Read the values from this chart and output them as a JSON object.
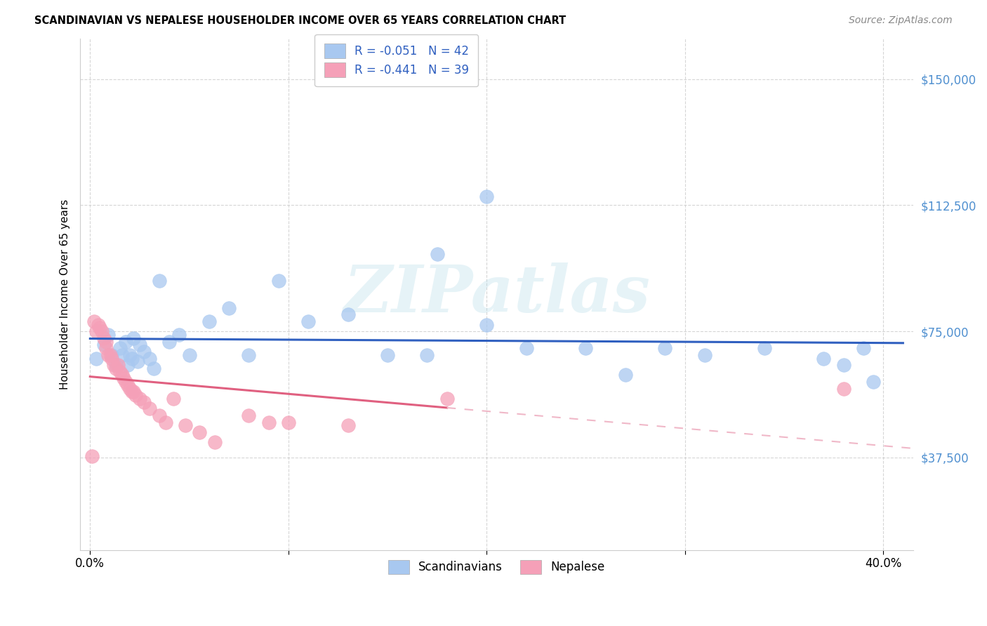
{
  "title": "SCANDINAVIAN VS NEPALESE HOUSEHOLDER INCOME OVER 65 YEARS CORRELATION CHART",
  "source": "Source: ZipAtlas.com",
  "ylabel": "Householder Income Over 65 years",
  "xlim": [
    -0.005,
    0.415
  ],
  "ylim": [
    10000,
    162000
  ],
  "yticks": [
    37500,
    75000,
    112500,
    150000
  ],
  "ytick_labels": [
    "$37,500",
    "$75,000",
    "$112,500",
    "$150,000"
  ],
  "xticks": [
    0.0,
    0.1,
    0.2,
    0.3,
    0.4
  ],
  "xtick_labels": [
    "0.0%",
    "",
    "",
    "",
    "40.0%"
  ],
  "scand_color": "#a8c8f0",
  "nepal_color": "#f5a0b8",
  "scand_line_color": "#3060c0",
  "nepal_line_color": "#e06080",
  "nepal_dash_color": "#f0b8c8",
  "watermark_text": "ZIPatlas",
  "scand_x": [
    0.003,
    0.007,
    0.009,
    0.011,
    0.013,
    0.015,
    0.016,
    0.018,
    0.019,
    0.02,
    0.021,
    0.022,
    0.024,
    0.025,
    0.027,
    0.03,
    0.032,
    0.035,
    0.04,
    0.045,
    0.05,
    0.06,
    0.07,
    0.08,
    0.095,
    0.11,
    0.13,
    0.15,
    0.17,
    0.2,
    0.22,
    0.25,
    0.27,
    0.29,
    0.31,
    0.34,
    0.37,
    0.38,
    0.39,
    0.395,
    0.175,
    0.2
  ],
  "scand_y": [
    67000,
    71000,
    74000,
    68000,
    65000,
    70000,
    68000,
    72000,
    65000,
    68000,
    67000,
    73000,
    66000,
    71000,
    69000,
    67000,
    64000,
    90000,
    72000,
    74000,
    68000,
    78000,
    82000,
    68000,
    90000,
    78000,
    80000,
    68000,
    68000,
    77000,
    70000,
    70000,
    62000,
    70000,
    68000,
    70000,
    67000,
    65000,
    70000,
    60000,
    98000,
    115000
  ],
  "nepal_x": [
    0.001,
    0.002,
    0.003,
    0.004,
    0.005,
    0.006,
    0.007,
    0.008,
    0.008,
    0.009,
    0.01,
    0.011,
    0.012,
    0.013,
    0.014,
    0.015,
    0.016,
    0.017,
    0.018,
    0.019,
    0.02,
    0.021,
    0.022,
    0.023,
    0.025,
    0.027,
    0.03,
    0.035,
    0.038,
    0.042,
    0.048,
    0.055,
    0.063,
    0.08,
    0.09,
    0.1,
    0.13,
    0.18,
    0.38
  ],
  "nepal_y": [
    38000,
    78000,
    75000,
    77000,
    76000,
    75000,
    73000,
    72000,
    70000,
    68000,
    68000,
    67000,
    65000,
    64000,
    65000,
    63000,
    62000,
    61000,
    60000,
    59000,
    58000,
    57000,
    57000,
    56000,
    55000,
    54000,
    52000,
    50000,
    48000,
    55000,
    47000,
    45000,
    42000,
    50000,
    48000,
    48000,
    47000,
    55000,
    58000
  ]
}
